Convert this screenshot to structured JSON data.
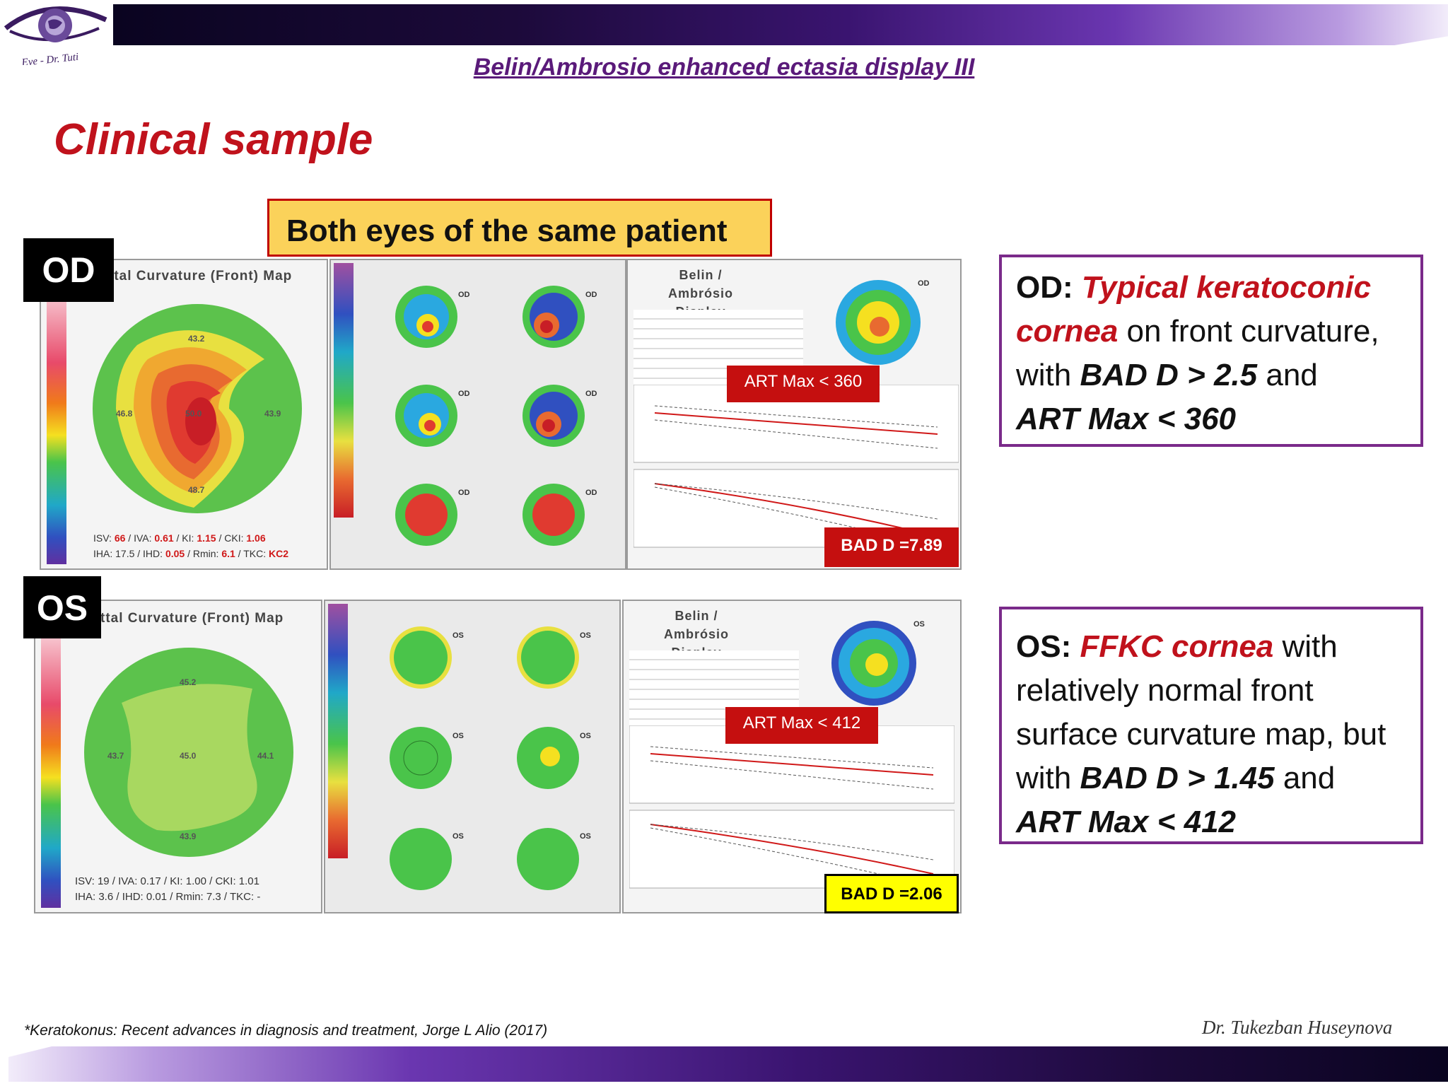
{
  "header": {
    "title": "Belin/Ambrosio enhanced ectasia display III",
    "logo_text": "Eye - Dr. Tuti"
  },
  "heading": "Clinical sample",
  "callout": "Both eyes of the same patient",
  "od": {
    "tag": "OD",
    "map_title": "ttal Curvature (Front) Map",
    "values": {
      "top": "43.2",
      "left": "46.8",
      "center": "50.0",
      "right": "43.9",
      "bottom": "48.7"
    },
    "stats_line1": {
      "isv_label": "ISV:",
      "isv": "66",
      "iva_label": "/ IVA:",
      "iva": "0.61",
      "ki_label": "/ KI:",
      "ki": "1.15",
      "cki_label": "/ CKI:",
      "cki": "1.06"
    },
    "stats_line2": {
      "iha_label": "IHA:",
      "iha": "17.5",
      "ihd_label": "/ IHD:",
      "ihd": "0.05",
      "rmin_label": "/ Rmin:",
      "rmin": "6.1",
      "tkc_label": "/ TKC:",
      "tkc": "KC2"
    },
    "belin_title": "Belin / Ambrósio Display",
    "art_label": "ART Max < 360",
    "bad_label": "BAD D =7.89",
    "box": {
      "prefix": "OD: ",
      "diagnosis": "Typical keratoconic cornea",
      "text1": " on front curvature, with ",
      "bad": "BAD D > 2.5",
      "text2": " and ",
      "art": "ART Max < 360"
    }
  },
  "os": {
    "tag": "OS",
    "map_title": "ttal Curvature (Front) Map",
    "values": {
      "top": "45.2",
      "left": "43.7",
      "center": "45.0",
      "right": "44.1",
      "bottom": "43.9"
    },
    "stats_line1": "ISV: 19 / IVA: 0.17 / KI: 1.00 / CKI: 1.01",
    "stats_line2": "IHA: 3.6 / IHD: 0.01 / Rmin: 7.3 / TKC: -",
    "belin_title": "Belin / Ambrósio Display",
    "art_label": "ART Max < 412",
    "bad_label": "BAD D =2.06",
    "box": {
      "prefix": "OS: ",
      "diagnosis": "FFKC cornea",
      "text1": " with relatively normal front surface curvature map, but with ",
      "bad": "BAD D > 1.45",
      "text2": " and ",
      "art": "ART Max < 412"
    }
  },
  "map_labels": {
    "od_eye": "OD",
    "os_eye": "OS"
  },
  "footnote": "*Keratokonus: Recent advances in diagnosis and treatment, Jorge L Alio (2017)",
  "author": "Dr. Tukezban Huseynova",
  "colors": {
    "accent_red": "#c0121c",
    "purple": "#5a1a7a",
    "callout_yellow": "#fbd25a",
    "art_red": "#c50f0f",
    "bad_yellow": "#ffff00"
  }
}
